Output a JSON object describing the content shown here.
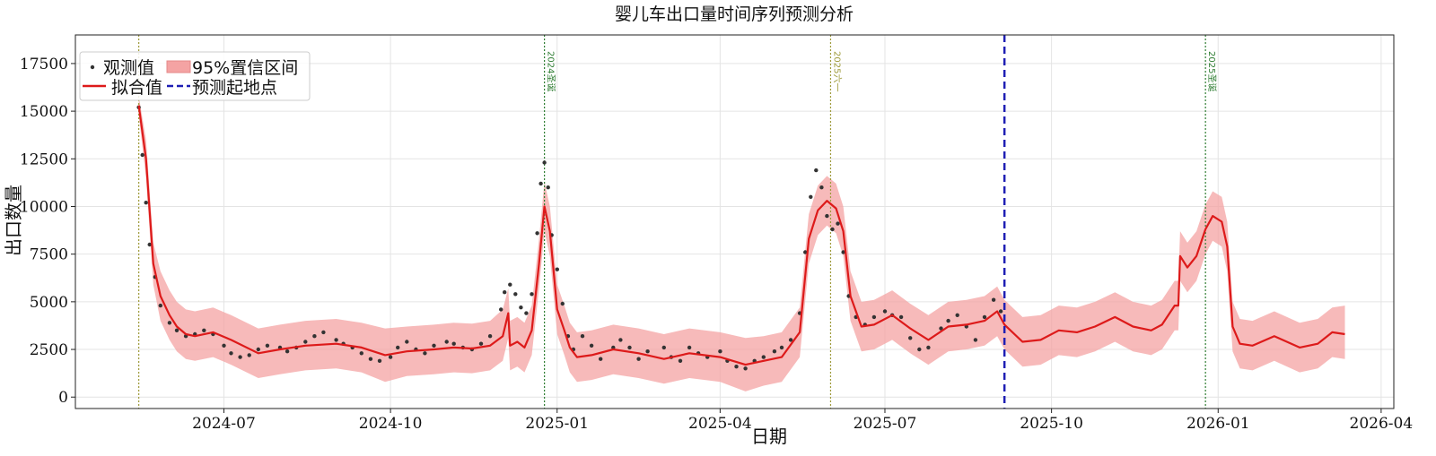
{
  "chart_data": {
    "type": "line",
    "title": "婴儿车出口量时间序列预测分析",
    "xlabel": "日期",
    "ylabel": "出口数量",
    "x_range": [
      "2024-04-10",
      "2026-04-08"
    ],
    "ylim": [
      -600,
      19000
    ],
    "x_ticks": [
      {
        "date": "2024-07-01",
        "label": "2024-07"
      },
      {
        "date": "2024-10-01",
        "label": "2024-10"
      },
      {
        "date": "2025-01-01",
        "label": "2025-01"
      },
      {
        "date": "2025-04-01",
        "label": "2025-04"
      },
      {
        "date": "2025-07-01",
        "label": "2025-07"
      },
      {
        "date": "2025-10-01",
        "label": "2025-10"
      },
      {
        "date": "2026-01-01",
        "label": "2026-01"
      },
      {
        "date": "2026-04-01",
        "label": "2026-04"
      }
    ],
    "y_ticks": [
      0,
      2500,
      5000,
      7500,
      10000,
      12500,
      15000,
      17500
    ],
    "y_tick_labels": [
      "0",
      "2500",
      "5000",
      "7500",
      "10000",
      "12500",
      "15000",
      "17500"
    ],
    "grid": true,
    "legend_position": "top-left",
    "legend": {
      "observed": "观测值",
      "ci": "95%置信区间",
      "fitted": "拟合值",
      "forecast_start": "预测起地点"
    },
    "colors": {
      "observed": "#333333",
      "fitted": "#dd1a1a",
      "ci_fill": "#f4a3a3",
      "forecast_line": "#1f1fb4",
      "holiday_green": "#2e7d32",
      "holiday_olive": "#9e9a3a"
    },
    "forecast_start": "2025-09-05",
    "annotations": [
      {
        "date": "2024-05-15",
        "label": "",
        "color": "olive"
      },
      {
        "date": "2024-12-25",
        "label": "2024圣诞",
        "color": "green"
      },
      {
        "date": "2025-06-01",
        "label": "2025六一",
        "color": "olive"
      },
      {
        "date": "2025-12-25",
        "label": "2025圣诞",
        "color": "green"
      }
    ],
    "fitted": [
      [
        "2024-05-15",
        15300
      ],
      [
        "2024-05-19",
        12500
      ],
      [
        "2024-05-23",
        7000
      ],
      [
        "2024-05-27",
        5300
      ],
      [
        "2024-06-01",
        4300
      ],
      [
        "2024-06-05",
        3700
      ],
      [
        "2024-06-10",
        3300
      ],
      [
        "2024-06-15",
        3200
      ],
      [
        "2024-06-25",
        3400
      ],
      [
        "2024-07-05",
        3000
      ],
      [
        "2024-07-20",
        2300
      ],
      [
        "2024-08-01",
        2500
      ],
      [
        "2024-08-15",
        2700
      ],
      [
        "2024-09-01",
        2800
      ],
      [
        "2024-09-15",
        2600
      ],
      [
        "2024-09-28",
        2200
      ],
      [
        "2024-10-10",
        2400
      ],
      [
        "2024-10-25",
        2500
      ],
      [
        "2024-11-05",
        2600
      ],
      [
        "2024-11-15",
        2550
      ],
      [
        "2024-11-25",
        2700
      ],
      [
        "2024-12-02",
        3200
      ],
      [
        "2024-12-05",
        4400
      ],
      [
        "2024-12-06",
        2700
      ],
      [
        "2024-12-10",
        2900
      ],
      [
        "2024-12-14",
        2600
      ],
      [
        "2024-12-18",
        3500
      ],
      [
        "2024-12-22",
        7000
      ],
      [
        "2024-12-25",
        10000
      ],
      [
        "2024-12-28",
        8700
      ],
      [
        "2025-01-01",
        4600
      ],
      [
        "2025-01-05",
        3500
      ],
      [
        "2025-01-08",
        2600
      ],
      [
        "2025-01-12",
        2100
      ],
      [
        "2025-01-20",
        2200
      ],
      [
        "2025-02-01",
        2500
      ],
      [
        "2025-02-15",
        2300
      ],
      [
        "2025-03-01",
        2000
      ],
      [
        "2025-03-15",
        2300
      ],
      [
        "2025-04-01",
        2100
      ],
      [
        "2025-04-15",
        1700
      ],
      [
        "2025-04-25",
        1900
      ],
      [
        "2025-05-05",
        2100
      ],
      [
        "2025-05-15",
        3400
      ],
      [
        "2025-05-20",
        8300
      ],
      [
        "2025-05-25",
        9800
      ],
      [
        "2025-05-30",
        10300
      ],
      [
        "2025-06-04",
        9900
      ],
      [
        "2025-06-08",
        8700
      ],
      [
        "2025-06-12",
        5300
      ],
      [
        "2025-06-18",
        3700
      ],
      [
        "2025-06-25",
        3800
      ],
      [
        "2025-07-05",
        4300
      ],
      [
        "2025-07-15",
        3600
      ],
      [
        "2025-07-25",
        3000
      ],
      [
        "2025-08-05",
        3700
      ],
      [
        "2025-08-15",
        3800
      ],
      [
        "2025-08-25",
        4000
      ],
      [
        "2025-09-01",
        4500
      ],
      [
        "2025-09-05",
        3800
      ],
      [
        "2025-09-15",
        2900
      ],
      [
        "2025-09-25",
        3000
      ],
      [
        "2025-10-05",
        3500
      ],
      [
        "2025-10-15",
        3400
      ],
      [
        "2025-10-25",
        3700
      ],
      [
        "2025-11-05",
        4200
      ],
      [
        "2025-11-15",
        3700
      ],
      [
        "2025-11-25",
        3500
      ],
      [
        "2025-12-01",
        3800
      ],
      [
        "2025-12-08",
        4800
      ],
      [
        "2025-12-10",
        4800
      ],
      [
        "2025-12-11",
        7400
      ],
      [
        "2025-12-15",
        6800
      ],
      [
        "2025-12-20",
        7400
      ],
      [
        "2025-12-25",
        8800
      ],
      [
        "2025-12-29",
        9500
      ],
      [
        "2026-01-03",
        9200
      ],
      [
        "2026-01-06",
        7900
      ],
      [
        "2026-01-09",
        3700
      ],
      [
        "2026-01-13",
        2800
      ],
      [
        "2026-01-20",
        2700
      ],
      [
        "2026-02-01",
        3200
      ],
      [
        "2026-02-15",
        2600
      ],
      [
        "2026-02-25",
        2800
      ],
      [
        "2026-03-05",
        3400
      ],
      [
        "2026-03-12",
        3300
      ]
    ],
    "observed": [
      [
        "2024-05-15",
        15200
      ],
      [
        "2024-05-17",
        12700
      ],
      [
        "2024-05-19",
        10200
      ],
      [
        "2024-05-21",
        8000
      ],
      [
        "2024-05-24",
        6300
      ],
      [
        "2024-05-27",
        4800
      ],
      [
        "2024-06-01",
        3900
      ],
      [
        "2024-06-05",
        3500
      ],
      [
        "2024-06-10",
        3200
      ],
      [
        "2024-06-15",
        3300
      ],
      [
        "2024-06-20",
        3500
      ],
      [
        "2024-06-25",
        3300
      ],
      [
        "2024-07-01",
        2700
      ],
      [
        "2024-07-05",
        2300
      ],
      [
        "2024-07-10",
        2100
      ],
      [
        "2024-07-15",
        2200
      ],
      [
        "2024-07-20",
        2500
      ],
      [
        "2024-07-25",
        2700
      ],
      [
        "2024-08-01",
        2600
      ],
      [
        "2024-08-05",
        2400
      ],
      [
        "2024-08-10",
        2600
      ],
      [
        "2024-08-15",
        2900
      ],
      [
        "2024-08-20",
        3200
      ],
      [
        "2024-08-25",
        3400
      ],
      [
        "2024-09-01",
        3000
      ],
      [
        "2024-09-05",
        2800
      ],
      [
        "2024-09-10",
        2600
      ],
      [
        "2024-09-15",
        2300
      ],
      [
        "2024-09-20",
        2000
      ],
      [
        "2024-09-25",
        1900
      ],
      [
        "2024-10-01",
        2100
      ],
      [
        "2024-10-05",
        2600
      ],
      [
        "2024-10-10",
        2900
      ],
      [
        "2024-10-15",
        2500
      ],
      [
        "2024-10-20",
        2300
      ],
      [
        "2024-10-25",
        2700
      ],
      [
        "2024-11-01",
        2900
      ],
      [
        "2024-11-05",
        2800
      ],
      [
        "2024-11-10",
        2600
      ],
      [
        "2024-11-15",
        2500
      ],
      [
        "2024-11-20",
        2800
      ],
      [
        "2024-11-25",
        3200
      ],
      [
        "2024-12-01",
        4600
      ],
      [
        "2024-12-03",
        5500
      ],
      [
        "2024-12-06",
        5900
      ],
      [
        "2024-12-09",
        5400
      ],
      [
        "2024-12-12",
        4700
      ],
      [
        "2024-12-15",
        4400
      ],
      [
        "2024-12-18",
        5400
      ],
      [
        "2024-12-21",
        8600
      ],
      [
        "2024-12-23",
        11200
      ],
      [
        "2024-12-25",
        12300
      ],
      [
        "2024-12-27",
        11000
      ],
      [
        "2024-12-29",
        8500
      ],
      [
        "2025-01-01",
        6700
      ],
      [
        "2025-01-04",
        4900
      ],
      [
        "2025-01-07",
        3200
      ],
      [
        "2025-01-10",
        2500
      ],
      [
        "2025-01-15",
        3200
      ],
      [
        "2025-01-20",
        2700
      ],
      [
        "2025-01-25",
        2000
      ],
      [
        "2025-02-01",
        2600
      ],
      [
        "2025-02-05",
        3000
      ],
      [
        "2025-02-10",
        2600
      ],
      [
        "2025-02-15",
        2000
      ],
      [
        "2025-02-20",
        2400
      ],
      [
        "2025-03-01",
        2600
      ],
      [
        "2025-03-05",
        2100
      ],
      [
        "2025-03-10",
        1900
      ],
      [
        "2025-03-15",
        2600
      ],
      [
        "2025-03-20",
        2300
      ],
      [
        "2025-03-25",
        2100
      ],
      [
        "2025-04-01",
        2400
      ],
      [
        "2025-04-05",
        1900
      ],
      [
        "2025-04-10",
        1600
      ],
      [
        "2025-04-15",
        1500
      ],
      [
        "2025-04-20",
        1900
      ],
      [
        "2025-04-25",
        2100
      ],
      [
        "2025-05-01",
        2400
      ],
      [
        "2025-05-05",
        2600
      ],
      [
        "2025-05-10",
        3000
      ],
      [
        "2025-05-15",
        4400
      ],
      [
        "2025-05-18",
        7600
      ],
      [
        "2025-05-21",
        10500
      ],
      [
        "2025-05-24",
        11900
      ],
      [
        "2025-05-27",
        11000
      ],
      [
        "2025-05-30",
        9500
      ],
      [
        "2025-06-02",
        8800
      ],
      [
        "2025-06-05",
        9100
      ],
      [
        "2025-06-08",
        7600
      ],
      [
        "2025-06-11",
        5300
      ],
      [
        "2025-06-15",
        4200
      ],
      [
        "2025-06-20",
        3800
      ],
      [
        "2025-06-25",
        4200
      ],
      [
        "2025-07-01",
        4500
      ],
      [
        "2025-07-05",
        4300
      ],
      [
        "2025-07-10",
        4200
      ],
      [
        "2025-07-15",
        3100
      ],
      [
        "2025-07-20",
        2500
      ],
      [
        "2025-07-25",
        2600
      ],
      [
        "2025-08-01",
        3600
      ],
      [
        "2025-08-05",
        4000
      ],
      [
        "2025-08-10",
        4300
      ],
      [
        "2025-08-15",
        3700
      ],
      [
        "2025-08-20",
        3000
      ],
      [
        "2025-08-25",
        4200
      ],
      [
        "2025-08-30",
        5100
      ],
      [
        "2025-09-03",
        4500
      ]
    ],
    "ci_band": [
      [
        "2024-05-15",
        14800,
        15800
      ],
      [
        "2024-05-19",
        11500,
        13500
      ],
      [
        "2024-05-23",
        5900,
        8100
      ],
      [
        "2024-05-27",
        4000,
        6600
      ],
      [
        "2024-06-01",
        3000,
        5600
      ],
      [
        "2024-06-05",
        2400,
        5000
      ],
      [
        "2024-06-10",
        2000,
        4600
      ],
      [
        "2024-06-15",
        1900,
        4500
      ],
      [
        "2024-06-25",
        2100,
        4700
      ],
      [
        "2024-07-05",
        1700,
        4300
      ],
      [
        "2024-07-20",
        1000,
        3600
      ],
      [
        "2024-08-01",
        1200,
        3800
      ],
      [
        "2024-08-15",
        1400,
        4000
      ],
      [
        "2024-09-01",
        1500,
        4100
      ],
      [
        "2024-09-15",
        1300,
        3900
      ],
      [
        "2024-09-28",
        800,
        3600
      ],
      [
        "2024-10-10",
        1100,
        3700
      ],
      [
        "2024-10-25",
        1200,
        3800
      ],
      [
        "2024-11-05",
        1300,
        3900
      ],
      [
        "2024-11-15",
        1250,
        3850
      ],
      [
        "2024-11-25",
        1400,
        4000
      ],
      [
        "2024-12-02",
        1900,
        4600
      ],
      [
        "2024-12-05",
        3100,
        5700
      ],
      [
        "2024-12-06",
        1400,
        4000
      ],
      [
        "2024-12-10",
        1600,
        4200
      ],
      [
        "2024-12-14",
        1300,
        3900
      ],
      [
        "2024-12-18",
        2200,
        4800
      ],
      [
        "2024-12-22",
        5700,
        8300
      ],
      [
        "2024-12-25",
        8700,
        11300
      ],
      [
        "2024-12-28",
        7400,
        10000
      ],
      [
        "2025-01-01",
        3300,
        5900
      ],
      [
        "2025-01-05",
        2200,
        4800
      ],
      [
        "2025-01-08",
        1300,
        3900
      ],
      [
        "2025-01-12",
        800,
        3400
      ],
      [
        "2025-01-20",
        900,
        3500
      ],
      [
        "2025-02-01",
        1200,
        3800
      ],
      [
        "2025-02-15",
        1000,
        3600
      ],
      [
        "2025-03-01",
        700,
        3300
      ],
      [
        "2025-03-15",
        1000,
        3600
      ],
      [
        "2025-04-01",
        800,
        3400
      ],
      [
        "2025-04-15",
        300,
        3100
      ],
      [
        "2025-04-25",
        600,
        3200
      ],
      [
        "2025-05-05",
        800,
        3400
      ],
      [
        "2025-05-15",
        2100,
        4700
      ],
      [
        "2025-05-20",
        7000,
        9600
      ],
      [
        "2025-05-25",
        8500,
        11100
      ],
      [
        "2025-05-30",
        9000,
        11600
      ],
      [
        "2025-06-04",
        8600,
        11200
      ],
      [
        "2025-06-08",
        7400,
        10000
      ],
      [
        "2025-06-12",
        4000,
        6600
      ],
      [
        "2025-06-18",
        2400,
        5000
      ],
      [
        "2025-06-25",
        2500,
        5100
      ],
      [
        "2025-07-05",
        3000,
        5600
      ],
      [
        "2025-07-15",
        2300,
        4900
      ],
      [
        "2025-07-25",
        1700,
        4300
      ],
      [
        "2025-08-05",
        2400,
        5000
      ],
      [
        "2025-08-15",
        2500,
        5100
      ],
      [
        "2025-08-25",
        2700,
        5300
      ],
      [
        "2025-09-01",
        3200,
        5800
      ],
      [
        "2025-09-05",
        2500,
        5100
      ],
      [
        "2025-09-15",
        1600,
        4200
      ],
      [
        "2025-09-25",
        1700,
        4300
      ],
      [
        "2025-10-05",
        2200,
        4800
      ],
      [
        "2025-10-15",
        2100,
        4700
      ],
      [
        "2025-10-25",
        2400,
        5000
      ],
      [
        "2025-11-05",
        2900,
        5500
      ],
      [
        "2025-11-15",
        2400,
        5000
      ],
      [
        "2025-11-25",
        2200,
        4800
      ],
      [
        "2025-12-01",
        2500,
        5100
      ],
      [
        "2025-12-08",
        3500,
        6100
      ],
      [
        "2025-12-10",
        3500,
        6100
      ],
      [
        "2025-12-11",
        6100,
        8700
      ],
      [
        "2025-12-15",
        5500,
        8100
      ],
      [
        "2025-12-20",
        6100,
        8700
      ],
      [
        "2025-12-25",
        7500,
        10100
      ],
      [
        "2025-12-29",
        8200,
        10800
      ],
      [
        "2026-01-03",
        7900,
        10500
      ],
      [
        "2026-01-06",
        6600,
        9200
      ],
      [
        "2026-01-09",
        2400,
        5000
      ],
      [
        "2026-01-13",
        1500,
        4100
      ],
      [
        "2026-01-20",
        1400,
        4000
      ],
      [
        "2026-02-01",
        1900,
        4500
      ],
      [
        "2026-02-15",
        1300,
        3900
      ],
      [
        "2026-02-25",
        1500,
        4100
      ],
      [
        "2026-03-05",
        2100,
        4700
      ],
      [
        "2026-03-12",
        2000,
        4800
      ]
    ]
  }
}
